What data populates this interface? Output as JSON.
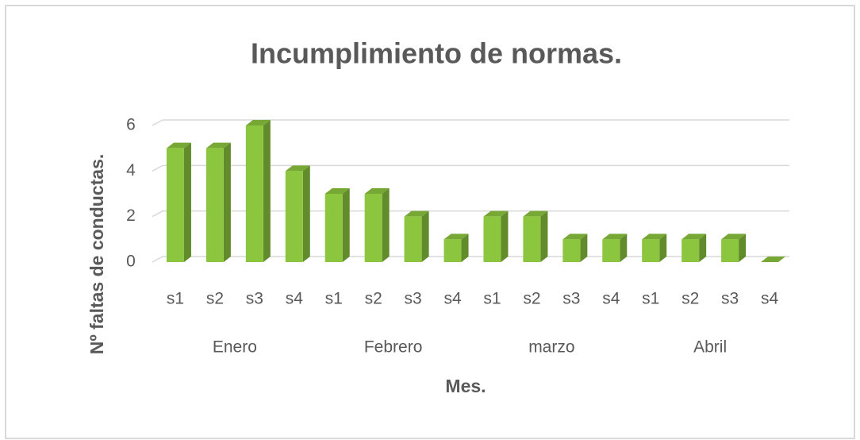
{
  "chart_data": {
    "type": "bar",
    "title": "Incumplimiento de normas.",
    "x_label": "Mes.",
    "y_label": "Nº faltas de conductas.",
    "categories": [
      "s1",
      "s2",
      "s3",
      "s4",
      "s1",
      "s2",
      "s3",
      "s4",
      "s1",
      "s2",
      "s3",
      "s4",
      "s1",
      "s2",
      "s3",
      "s4"
    ],
    "groups": [
      "Enero",
      "Febrero",
      "marzo",
      "Abril"
    ],
    "values": [
      5,
      5,
      6,
      4,
      3,
      3,
      2,
      1,
      2,
      2,
      1,
      1,
      1,
      1,
      1,
      0
    ],
    "color": "#8cc63e",
    "ylim": [
      0,
      6
    ],
    "yticks": [
      0,
      2,
      4,
      6
    ],
    "grid": true
  }
}
